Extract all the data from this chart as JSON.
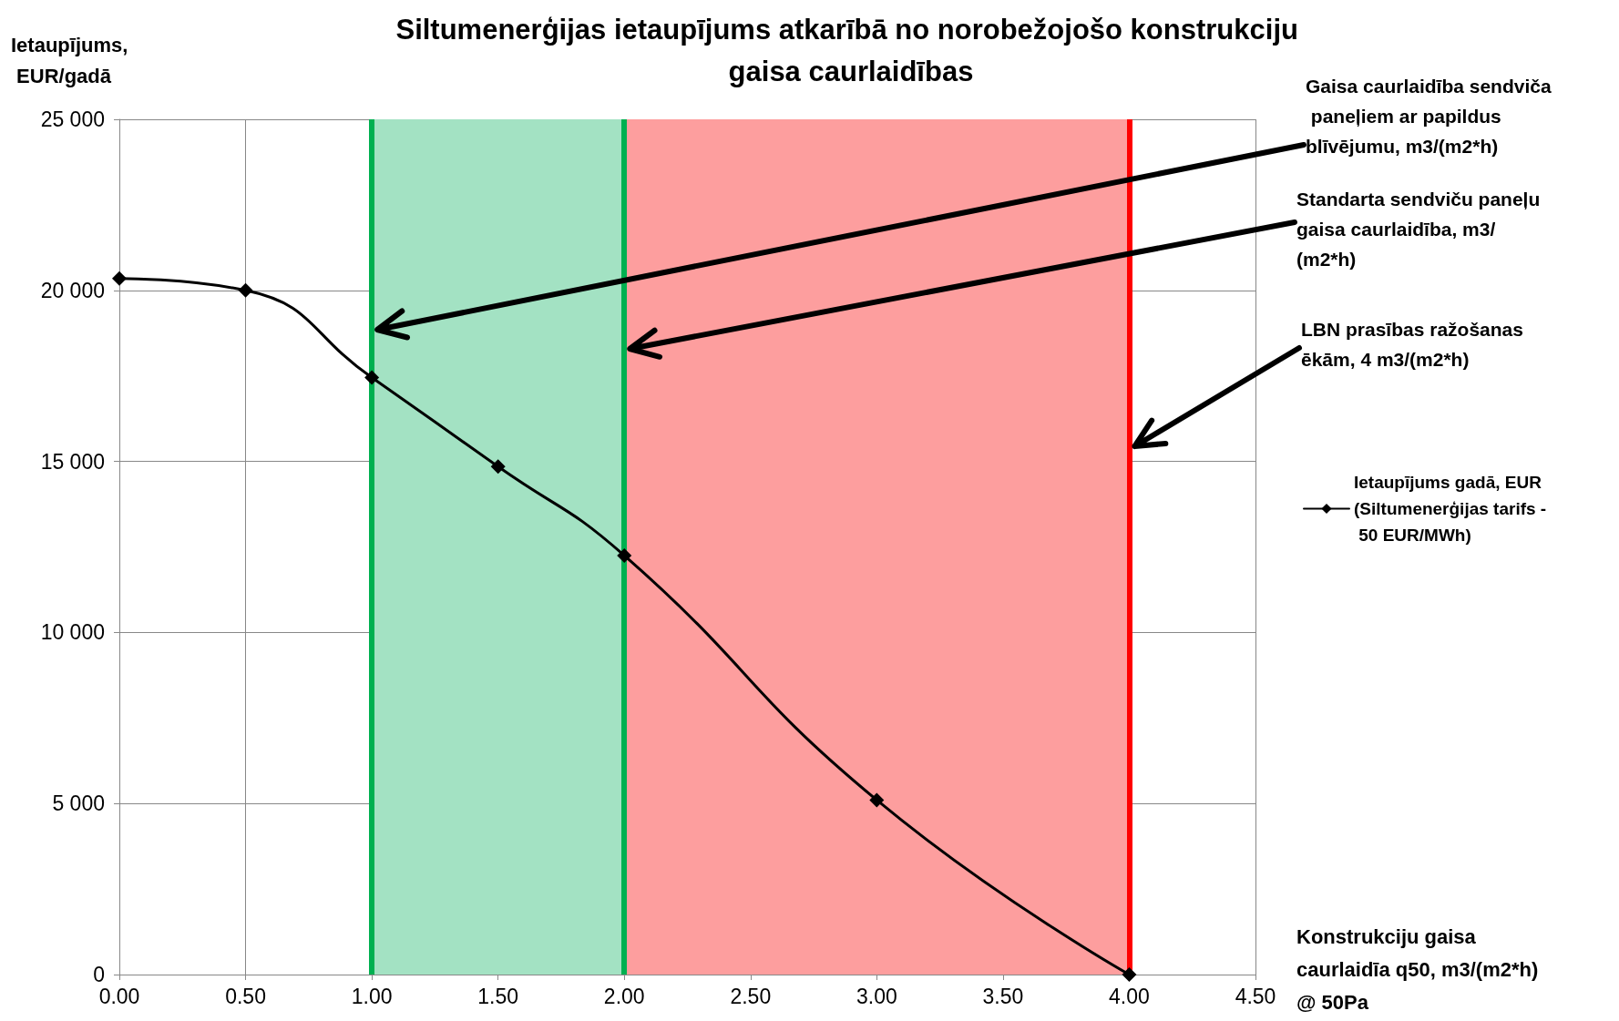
{
  "chart_data": {
    "type": "line",
    "title": "Siltumenerģijas ietaupījums atkarībā no norobežojošo konstrukciju gaisa caurlaidības",
    "xlabel": "Konstrukciju gaisa caurlaidīa q50, m3/(m2*h) @ 50Pa",
    "ylabel": "Ietaupījums, EUR/gadā",
    "x": [
      0,
      0.5,
      1.0,
      1.5,
      2.0,
      3.0,
      4.0
    ],
    "series": [
      {
        "name": "Ietaupījums gadā, EUR (Siltumenerģijas tarifs - 50 EUR/MWh)",
        "color": "#000000",
        "values": [
          20350,
          20000,
          17450,
          14850,
          12250,
          5100,
          0
        ]
      }
    ],
    "xlim": [
      0,
      4.5
    ],
    "xticks": [
      {
        "value": 0,
        "label": "0.00"
      },
      {
        "value": 0.5,
        "label": "0.50"
      },
      {
        "value": 1,
        "label": "1.00"
      },
      {
        "value": 1.5,
        "label": "1.50"
      },
      {
        "value": 2,
        "label": "2.00"
      },
      {
        "value": 2.5,
        "label": "2.50"
      },
      {
        "value": 3,
        "label": "3.00"
      },
      {
        "value": 3.5,
        "label": "3.50"
      },
      {
        "value": 4,
        "label": "4.00"
      },
      {
        "value": 4.5,
        "label": "4.50"
      }
    ],
    "ylim": [
      0,
      25000
    ],
    "yticks": [
      0,
      {
        "value": 5000,
        "label": "5 000"
      },
      {
        "value": 10000,
        "label": "10 000"
      },
      {
        "value": 15000,
        "label": "15 000"
      },
      {
        "value": 20000,
        "label": "20 000"
      },
      {
        "value": 25000,
        "label": "25 000"
      }
    ],
    "bands": [
      {
        "axis": "x",
        "from": 1,
        "to": 2,
        "color": "#a3e2c3"
      },
      {
        "axis": "x",
        "from": 2,
        "to": 4,
        "color": "#fd9e9e"
      }
    ],
    "ref_lines": [
      {
        "axis": "x",
        "value": 1,
        "color": "#00b050",
        "label": "Gaisa caurlaidība sendviča paneļiem ar papildus blīvējumu, m3/(m2*h)"
      },
      {
        "axis": "x",
        "value": 2,
        "color": "#00b050",
        "label": "Standarta sendviču paneļu gaisa caurlaidība, m3/(m2*h)"
      },
      {
        "axis": "x",
        "value": 4,
        "color": "#ff0000",
        "label": "LBN prasības ražošanas ēkām, 4 m3/(m2*h)"
      }
    ],
    "grid": true,
    "legend": "right",
    "marker": "diamond",
    "line_style": "solid"
  }
}
